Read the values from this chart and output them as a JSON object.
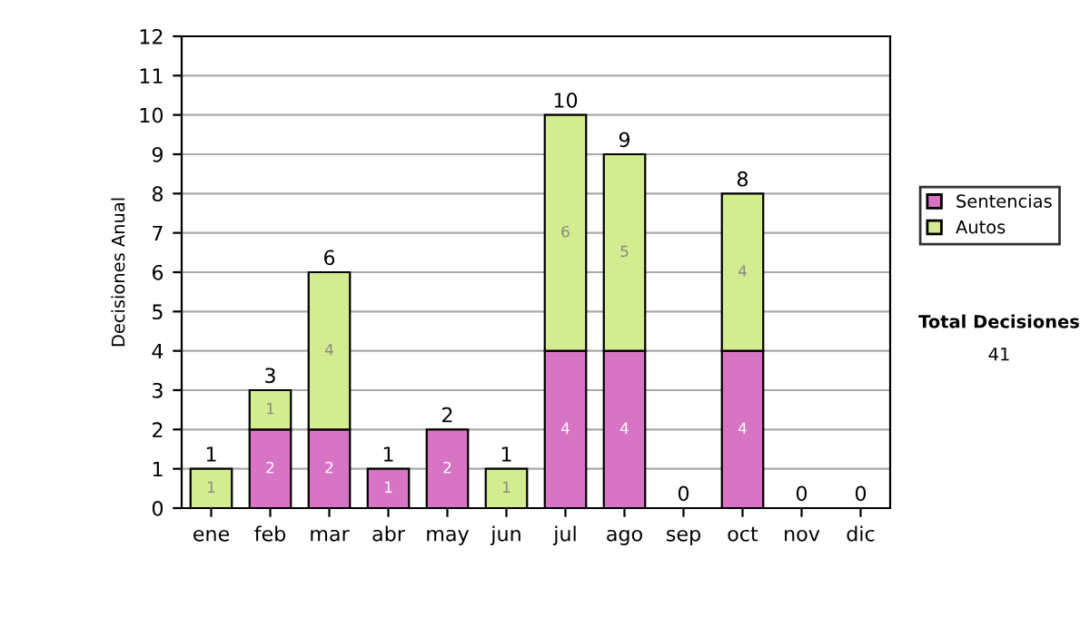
{
  "chart_data": {
    "type": "bar",
    "stacked": true,
    "ylabel": "Decisiones Anual",
    "categories": [
      "ene",
      "feb",
      "mar",
      "abr",
      "may",
      "jun",
      "jul",
      "ago",
      "sep",
      "oct",
      "nov",
      "dic"
    ],
    "series": [
      {
        "name": "Sentencias",
        "color": "#d874c4",
        "values": [
          0,
          2,
          2,
          1,
          2,
          0,
          4,
          4,
          0,
          4,
          0,
          0
        ],
        "value_labels": [
          null,
          "2",
          "2",
          "1",
          "2",
          null,
          "4",
          "4",
          null,
          "4",
          null,
          null
        ]
      },
      {
        "name": "Autos",
        "color": "#d4ec90",
        "values": [
          1,
          1,
          4,
          0,
          0,
          1,
          6,
          5,
          0,
          4,
          0,
          0
        ],
        "value_labels": [
          "1",
          "1",
          "4",
          null,
          null,
          "1",
          "6",
          "5",
          null,
          "4",
          null,
          null
        ]
      }
    ],
    "totals": [
      "1",
      "3",
      "6",
      "1",
      "2",
      "1",
      "10",
      "9",
      "0",
      "8",
      "0",
      "0"
    ],
    "ylim": [
      0,
      12
    ],
    "yticks": [
      0,
      1,
      2,
      3,
      4,
      5,
      6,
      7,
      8,
      9,
      10,
      11,
      12
    ],
    "grid": "y",
    "legend": "right",
    "annotations": [
      "Total Decisiones",
      "41"
    ]
  }
}
